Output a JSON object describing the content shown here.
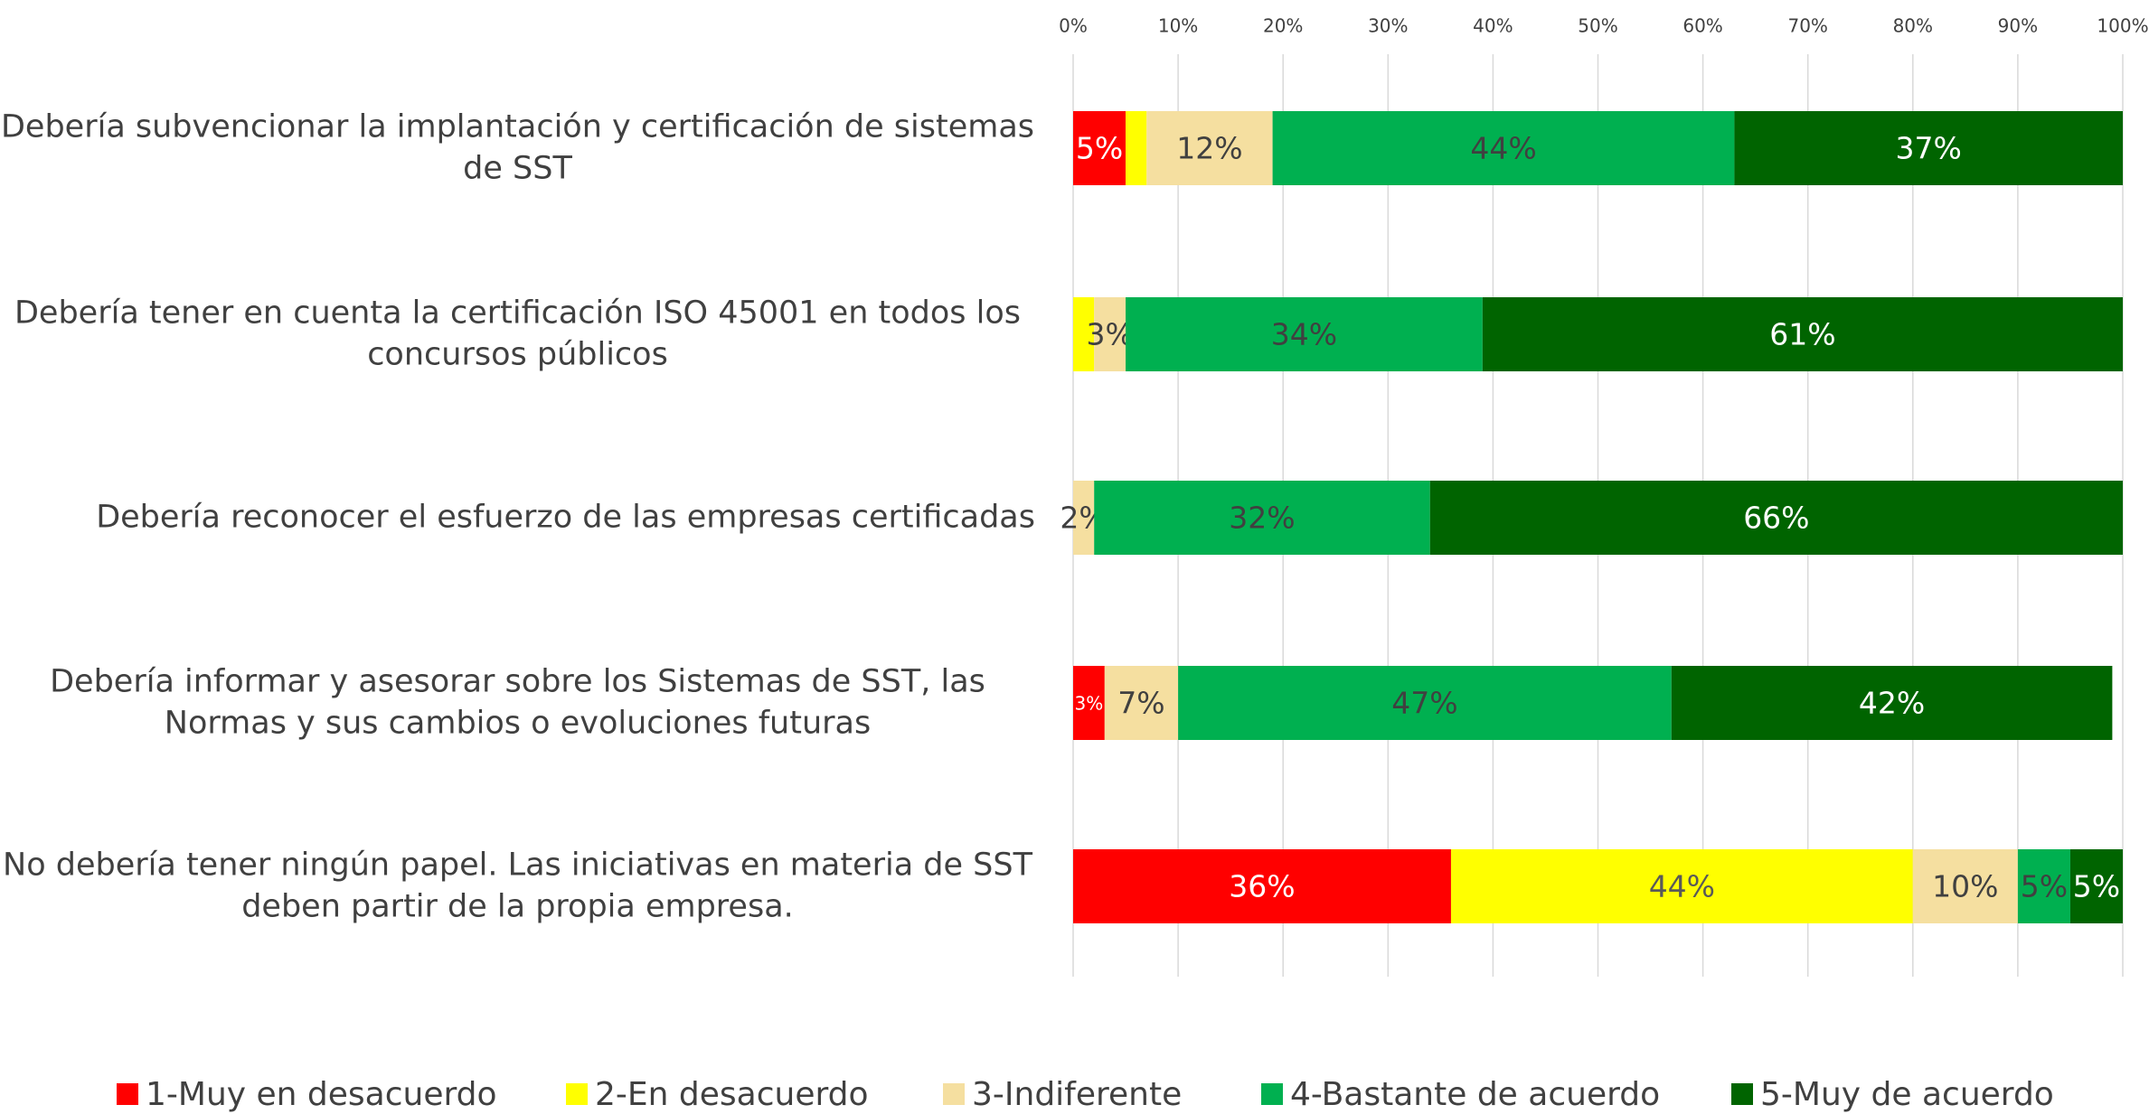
{
  "chart_data": {
    "type": "stacked_barh",
    "categories": [
      "Debería subvencionar la implantación y certificación de sistemas de SST",
      "Debería tener en cuenta la certificación ISO 45001 en todos los concursos públicos",
      "Debería reconocer el esfuerzo de las empresas certificadas",
      "Debería informar y asesorar sobre los Sistemas de SST, las Normas y sus cambios o evoluciones futuras",
      "No debería tener ningún papel. Las iniciativas en materia de SST deben partir de la propia empresa."
    ],
    "series": [
      {
        "name": "1-Muy en desacuerdo",
        "color": "#ff0000",
        "label_color": "#ffffff",
        "values": [
          5,
          0,
          0,
          3,
          36
        ],
        "value_labels": [
          "5%",
          null,
          null,
          "3%",
          "36%"
        ]
      },
      {
        "name": "2-En desacuerdo",
        "color": "#ffff00",
        "label_color": "#595959",
        "values": [
          2,
          2,
          0,
          0,
          44
        ],
        "value_labels": [
          null,
          null,
          null,
          null,
          "44%"
        ]
      },
      {
        "name": "3-Indiferente",
        "color": "#f5dfa0",
        "label_color": "#404040",
        "values": [
          12,
          3,
          2,
          7,
          10
        ],
        "value_labels": [
          "12%",
          "3%",
          "2%",
          "7%",
          "10%"
        ]
      },
      {
        "name": "4-Bastante de acuerdo",
        "color": "#00b050",
        "label_color": "#404040",
        "values": [
          44,
          34,
          32,
          47,
          5
        ],
        "value_labels": [
          "44%",
          "34%",
          "32%",
          "47%",
          "5%"
        ]
      },
      {
        "name": "5-Muy de acuerdo",
        "color": "#006400",
        "label_color": "#ffffff",
        "values": [
          37,
          61,
          66,
          42,
          5
        ],
        "value_labels": [
          "37%",
          "61%",
          "66%",
          "42%",
          "5%"
        ]
      }
    ],
    "xlim": [
      0,
      100
    ],
    "xticks": [
      {
        "value": 0,
        "label": "0%"
      },
      {
        "value": 10,
        "label": "10%"
      },
      {
        "value": 20,
        "label": "20%"
      },
      {
        "value": 30,
        "label": "30%"
      },
      {
        "value": 40,
        "label": "40%"
      },
      {
        "value": 50,
        "label": "50%"
      },
      {
        "value": 60,
        "label": "60%"
      },
      {
        "value": 70,
        "label": "70%"
      },
      {
        "value": 80,
        "label": "80%"
      },
      {
        "value": 90,
        "label": "90%"
      },
      {
        "value": 100,
        "label": "100%"
      }
    ],
    "grid": true,
    "legend": "bottom"
  }
}
